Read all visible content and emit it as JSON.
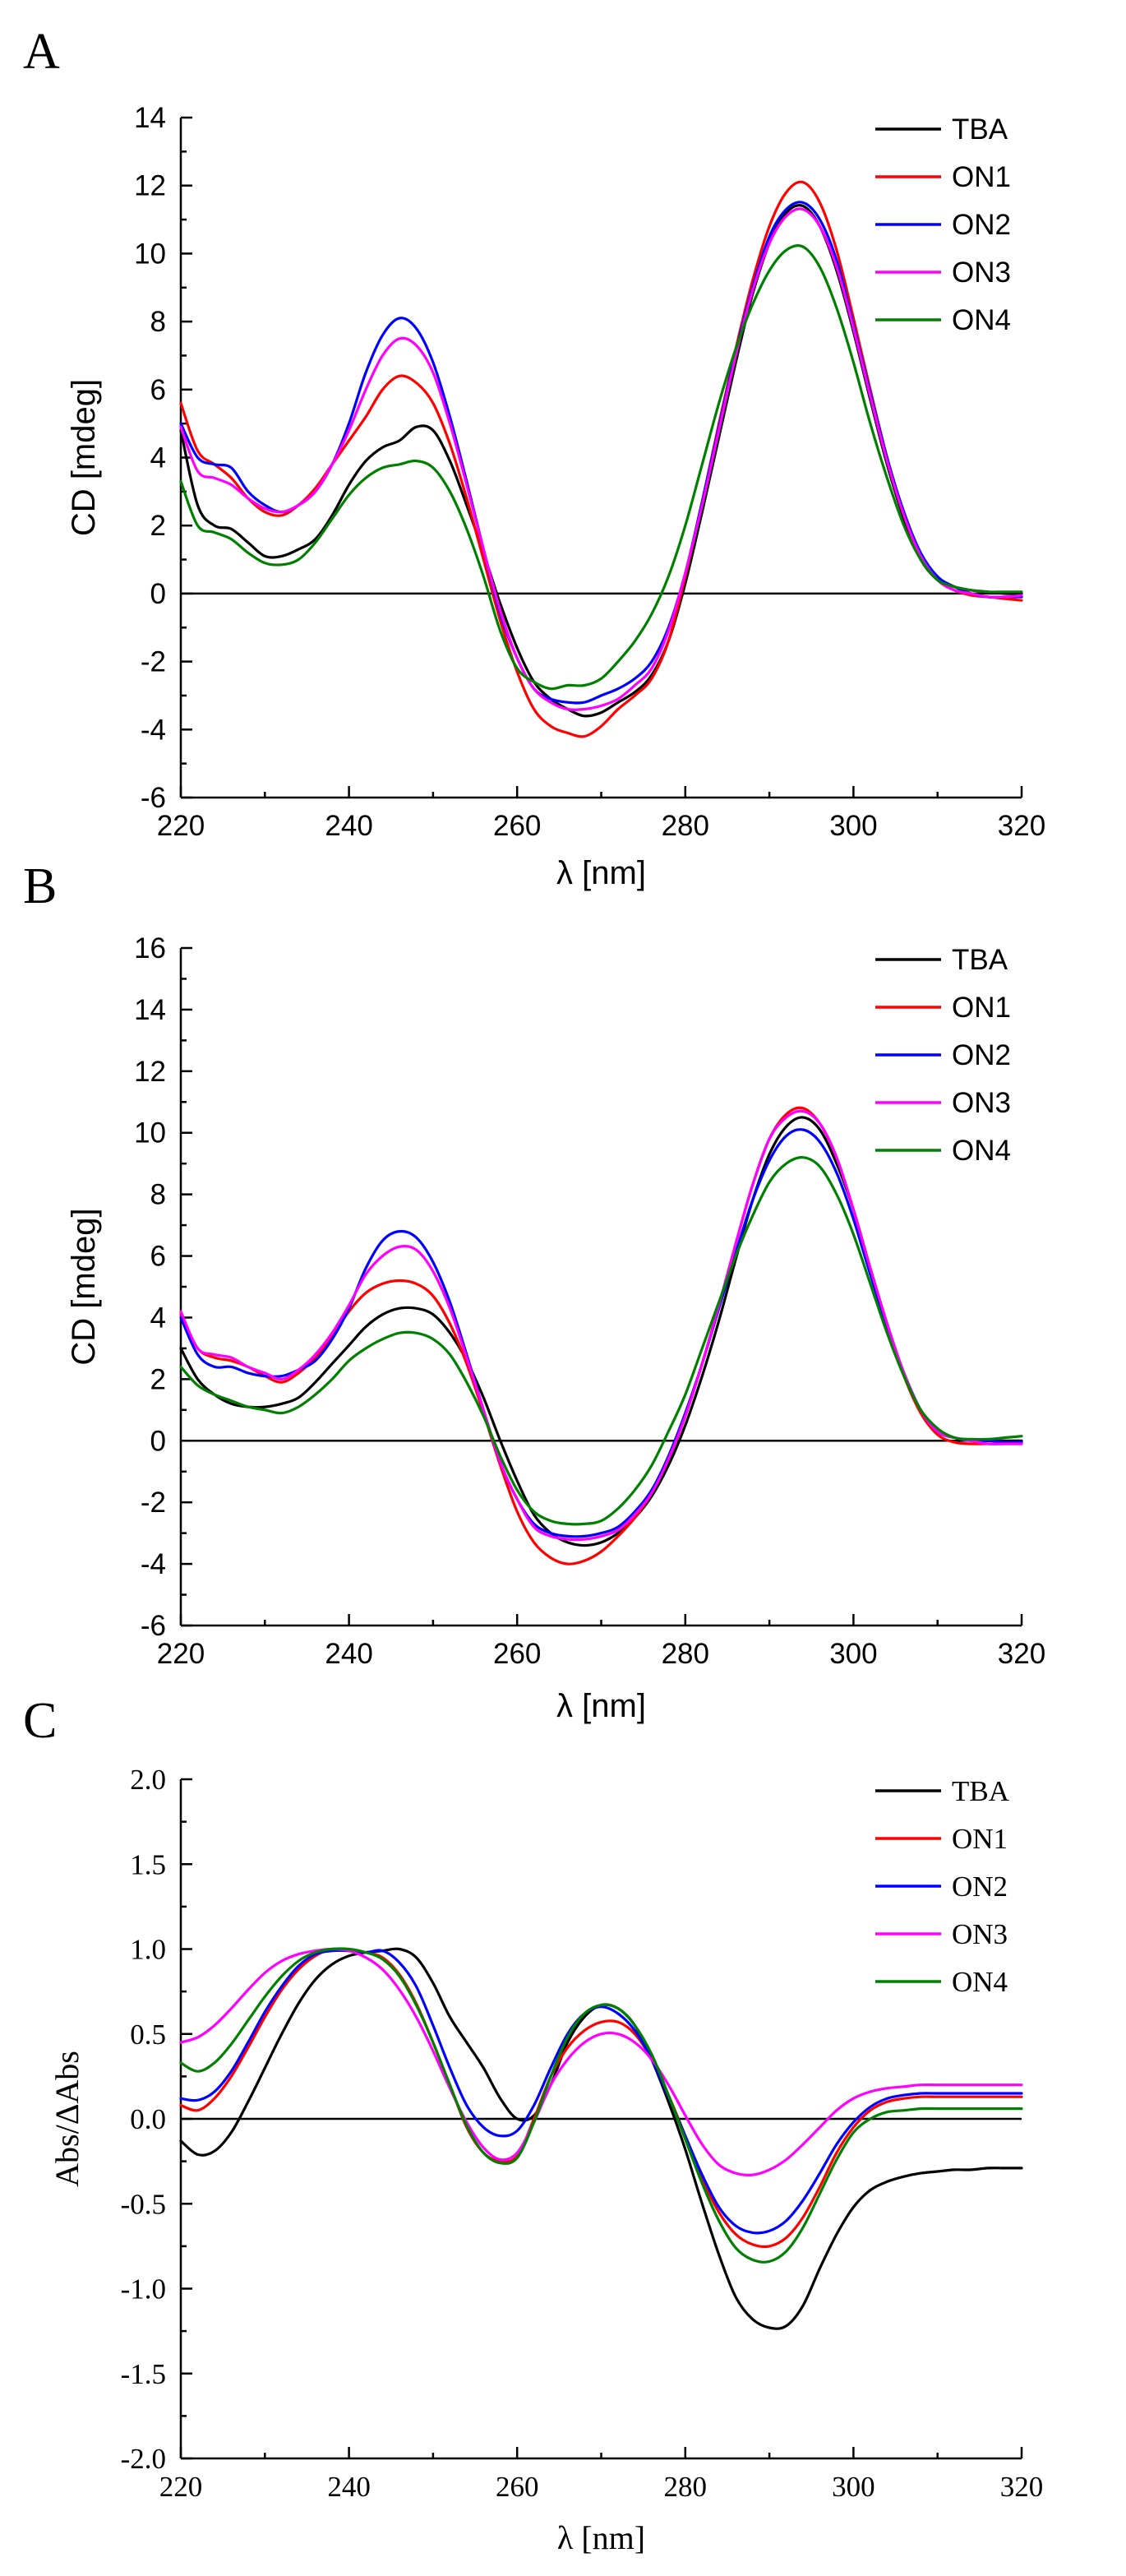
{
  "chart_data": [
    {
      "panel": "A",
      "type": "line",
      "title": "",
      "xlabel": "λ [nm]",
      "ylabel": "CD [mdeg]",
      "xlim": [
        220,
        320
      ],
      "ylim": [
        -6,
        14
      ],
      "xticks": [
        "220",
        "240",
        "260",
        "280",
        "300",
        "320"
      ],
      "yticks": [
        "-6",
        "-4",
        "-2",
        "0",
        "2",
        "4",
        "6",
        "8",
        "10",
        "12",
        "14"
      ],
      "zero_line": true,
      "legend_position": "top-right",
      "x": [
        220,
        222,
        224,
        226,
        228,
        230,
        232,
        234,
        236,
        238,
        240,
        242,
        244,
        246,
        248,
        250,
        252,
        254,
        256,
        258,
        260,
        262,
        264,
        266,
        268,
        270,
        272,
        274,
        276,
        278,
        280,
        282,
        284,
        286,
        288,
        290,
        292,
        294,
        296,
        298,
        300,
        302,
        304,
        306,
        308,
        310,
        312,
        314,
        316,
        318,
        320
      ],
      "series": [
        {
          "name": "TBA",
          "color": "#000000",
          "values": [
            4.8,
            2.6,
            2.0,
            1.9,
            1.5,
            1.1,
            1.1,
            1.3,
            1.6,
            2.3,
            3.2,
            3.9,
            4.3,
            4.5,
            4.9,
            4.8,
            3.9,
            2.6,
            1.2,
            -0.3,
            -1.6,
            -2.6,
            -3.1,
            -3.4,
            -3.6,
            -3.5,
            -3.2,
            -2.9,
            -2.4,
            -1.4,
            0.3,
            2.4,
            4.6,
            6.8,
            8.8,
            10.3,
            11.2,
            11.4,
            10.8,
            9.5,
            7.7,
            5.7,
            3.8,
            2.2,
            1.0,
            0.4,
            0.2,
            0.1,
            0.05,
            0.0,
            0.0
          ]
        },
        {
          "name": "ON1",
          "color": "#ff0000",
          "values": [
            5.6,
            4.2,
            3.8,
            3.4,
            2.8,
            2.4,
            2.3,
            2.6,
            3.1,
            3.8,
            4.5,
            5.2,
            6.0,
            6.4,
            6.2,
            5.6,
            4.4,
            2.8,
            1.0,
            -0.8,
            -2.3,
            -3.4,
            -3.9,
            -4.1,
            -4.2,
            -3.9,
            -3.4,
            -3.0,
            -2.5,
            -1.4,
            0.5,
            2.7,
            5.0,
            7.2,
            9.2,
            10.8,
            11.8,
            12.1,
            11.5,
            10.1,
            8.1,
            6.0,
            4.0,
            2.3,
            1.1,
            0.4,
            0.1,
            -0.05,
            -0.1,
            -0.15,
            -0.2
          ]
        },
        {
          "name": "ON2",
          "color": "#0000ff",
          "values": [
            5.0,
            4.0,
            3.8,
            3.7,
            3.0,
            2.6,
            2.4,
            2.6,
            3.0,
            3.8,
            5.0,
            6.5,
            7.6,
            8.1,
            7.8,
            6.8,
            5.2,
            3.3,
            1.3,
            -0.6,
            -1.9,
            -2.8,
            -3.1,
            -3.2,
            -3.2,
            -3.0,
            -2.8,
            -2.5,
            -2.0,
            -1.0,
            0.6,
            2.7,
            4.9,
            7.1,
            9.0,
            10.5,
            11.3,
            11.5,
            11.0,
            9.8,
            7.9,
            5.9,
            4.0,
            2.4,
            1.2,
            0.5,
            0.2,
            0.0,
            -0.1,
            -0.1,
            -0.1
          ]
        },
        {
          "name": "ON3",
          "color": "#ff00ff",
          "values": [
            4.9,
            3.6,
            3.4,
            3.2,
            2.8,
            2.5,
            2.4,
            2.6,
            3.0,
            3.8,
            4.8,
            6.0,
            7.0,
            7.5,
            7.3,
            6.5,
            5.0,
            3.2,
            1.3,
            -0.5,
            -1.9,
            -2.8,
            -3.2,
            -3.4,
            -3.4,
            -3.3,
            -3.1,
            -2.7,
            -2.2,
            -1.1,
            0.6,
            2.6,
            4.8,
            7.0,
            8.9,
            10.3,
            11.1,
            11.3,
            10.8,
            9.6,
            7.8,
            5.8,
            3.9,
            2.3,
            1.1,
            0.4,
            0.1,
            0.0,
            -0.1,
            -0.1,
            -0.05
          ]
        },
        {
          "name": "ON4",
          "color": "#008000",
          "values": [
            3.3,
            2.0,
            1.8,
            1.6,
            1.2,
            0.9,
            0.85,
            1.0,
            1.5,
            2.2,
            2.9,
            3.4,
            3.7,
            3.8,
            3.9,
            3.7,
            3.0,
            1.9,
            0.5,
            -1.1,
            -2.2,
            -2.6,
            -2.8,
            -2.7,
            -2.7,
            -2.5,
            -2.0,
            -1.4,
            -0.6,
            0.5,
            2.0,
            3.8,
            5.6,
            7.2,
            8.5,
            9.5,
            10.1,
            10.2,
            9.6,
            8.4,
            6.8,
            5.0,
            3.4,
            2.0,
            1.0,
            0.4,
            0.2,
            0.1,
            0.05,
            0.05,
            0.05
          ]
        }
      ]
    },
    {
      "panel": "B",
      "type": "line",
      "title": "",
      "xlabel": "λ [nm]",
      "ylabel": "CD [mdeg]",
      "xlim": [
        220,
        320
      ],
      "ylim": [
        -6,
        16
      ],
      "xticks": [
        "220",
        "240",
        "260",
        "280",
        "300",
        "320"
      ],
      "yticks": [
        "-6",
        "-4",
        "-2",
        "0",
        "2",
        "4",
        "6",
        "8",
        "10",
        "12",
        "14",
        "16"
      ],
      "zero_line": true,
      "legend_position": "top-right",
      "x": [
        220,
        222,
        224,
        226,
        228,
        230,
        232,
        234,
        236,
        238,
        240,
        242,
        244,
        246,
        248,
        250,
        252,
        254,
        256,
        258,
        260,
        262,
        264,
        266,
        268,
        270,
        272,
        274,
        276,
        278,
        280,
        282,
        284,
        286,
        288,
        290,
        292,
        294,
        296,
        298,
        300,
        302,
        304,
        306,
        308,
        310,
        312,
        314,
        316,
        318,
        320
      ],
      "series": [
        {
          "name": "TBA",
          "color": "#000000",
          "values": [
            3.0,
            2.0,
            1.5,
            1.2,
            1.1,
            1.1,
            1.2,
            1.4,
            1.9,
            2.5,
            3.1,
            3.7,
            4.1,
            4.3,
            4.3,
            4.1,
            3.5,
            2.6,
            1.4,
            0.0,
            -1.3,
            -2.4,
            -3.0,
            -3.3,
            -3.4,
            -3.3,
            -3.0,
            -2.5,
            -1.8,
            -0.8,
            0.5,
            2.1,
            3.9,
            5.9,
            7.8,
            9.3,
            10.2,
            10.5,
            10.1,
            9.0,
            7.5,
            5.6,
            3.8,
            2.2,
            1.0,
            0.3,
            0.1,
            0.0,
            0.0,
            0.0,
            0.0
          ]
        },
        {
          "name": "ON1",
          "color": "#ff0000",
          "values": [
            4.1,
            3.0,
            2.7,
            2.6,
            2.4,
            2.1,
            1.9,
            2.2,
            2.7,
            3.4,
            4.2,
            4.8,
            5.1,
            5.2,
            5.1,
            4.7,
            3.8,
            2.5,
            0.9,
            -0.8,
            -2.3,
            -3.3,
            -3.8,
            -4.0,
            -3.9,
            -3.6,
            -3.1,
            -2.5,
            -1.7,
            -0.6,
            0.8,
            2.5,
            4.4,
            6.4,
            8.3,
            9.8,
            10.6,
            10.8,
            10.3,
            9.2,
            7.5,
            5.6,
            3.7,
            2.1,
            0.9,
            0.2,
            -0.05,
            -0.1,
            -0.1,
            -0.1,
            -0.1
          ]
        },
        {
          "name": "ON2",
          "color": "#0000ff",
          "values": [
            4.0,
            2.8,
            2.4,
            2.4,
            2.2,
            2.1,
            2.1,
            2.3,
            2.6,
            3.3,
            4.3,
            5.6,
            6.5,
            6.8,
            6.6,
            5.8,
            4.5,
            2.8,
            1.0,
            -0.7,
            -1.9,
            -2.7,
            -3.0,
            -3.1,
            -3.1,
            -3.0,
            -2.8,
            -2.3,
            -1.6,
            -0.5,
            0.9,
            2.5,
            4.3,
            6.1,
            7.8,
            9.1,
            9.9,
            10.1,
            9.7,
            8.7,
            7.2,
            5.4,
            3.7,
            2.2,
            1.0,
            0.3,
            0.1,
            0.0,
            0.0,
            -0.05,
            -0.05
          ]
        },
        {
          "name": "ON3",
          "color": "#ff00ff",
          "values": [
            4.2,
            3.0,
            2.8,
            2.7,
            2.4,
            2.2,
            2.0,
            2.3,
            2.8,
            3.5,
            4.4,
            5.4,
            6.0,
            6.3,
            6.2,
            5.5,
            4.3,
            2.7,
            1.0,
            -0.7,
            -1.9,
            -2.8,
            -3.1,
            -3.2,
            -3.2,
            -3.1,
            -2.9,
            -2.4,
            -1.7,
            -0.6,
            0.8,
            2.5,
            4.4,
            6.4,
            8.3,
            9.8,
            10.5,
            10.7,
            10.3,
            9.2,
            7.5,
            5.6,
            3.8,
            2.2,
            1.0,
            0.3,
            0.1,
            0.0,
            -0.1,
            -0.1,
            -0.1
          ]
        },
        {
          "name": "ON4",
          "color": "#008000",
          "values": [
            2.4,
            1.8,
            1.5,
            1.3,
            1.1,
            1.0,
            0.9,
            1.1,
            1.5,
            2.0,
            2.6,
            3.0,
            3.3,
            3.5,
            3.5,
            3.3,
            2.8,
            1.9,
            0.8,
            -0.5,
            -1.6,
            -2.3,
            -2.6,
            -2.7,
            -2.7,
            -2.6,
            -2.2,
            -1.6,
            -0.8,
            0.3,
            1.5,
            3.0,
            4.5,
            6.0,
            7.3,
            8.4,
            9.0,
            9.2,
            8.9,
            8.0,
            6.7,
            5.1,
            3.5,
            2.1,
            1.0,
            0.4,
            0.1,
            0.05,
            0.05,
            0.1,
            0.15
          ]
        }
      ]
    },
    {
      "panel": "C",
      "type": "line",
      "title": "",
      "xlabel": "λ [nm]",
      "ylabel": "Abs/ΔAbs",
      "xlim": [
        220,
        320
      ],
      "ylim": [
        -2.0,
        2.0
      ],
      "xticks": [
        "220",
        "240",
        "260",
        "280",
        "300",
        "320"
      ],
      "yticks": [
        "-2.0",
        "-1.5",
        "-1.0",
        "-0.5",
        "0.0",
        "0.5",
        "1.0",
        "1.5",
        "2.0"
      ],
      "zero_line": true,
      "legend_position": "top-right",
      "x": [
        220,
        222,
        224,
        226,
        228,
        230,
        232,
        234,
        236,
        238,
        240,
        242,
        244,
        246,
        248,
        250,
        252,
        254,
        256,
        258,
        260,
        262,
        264,
        266,
        268,
        270,
        272,
        274,
        276,
        278,
        280,
        282,
        284,
        286,
        288,
        290,
        292,
        294,
        296,
        298,
        300,
        302,
        304,
        306,
        308,
        310,
        312,
        314,
        316,
        318,
        320
      ],
      "series": [
        {
          "name": "TBA",
          "color": "#000000",
          "values": [
            -0.13,
            -0.21,
            -0.19,
            -0.08,
            0.1,
            0.3,
            0.5,
            0.68,
            0.82,
            0.91,
            0.96,
            0.98,
            0.99,
            1.0,
            0.95,
            0.8,
            0.6,
            0.45,
            0.3,
            0.12,
            0.0,
            0.02,
            0.2,
            0.45,
            0.6,
            0.67,
            0.65,
            0.55,
            0.35,
            0.1,
            -0.18,
            -0.5,
            -0.8,
            -1.05,
            -1.18,
            -1.23,
            -1.22,
            -1.1,
            -0.88,
            -0.68,
            -0.52,
            -0.42,
            -0.37,
            -0.34,
            -0.32,
            -0.31,
            -0.3,
            -0.3,
            -0.29,
            -0.29,
            -0.29
          ]
        },
        {
          "name": "ON1",
          "color": "#ff0000",
          "values": [
            0.08,
            0.05,
            0.12,
            0.25,
            0.42,
            0.6,
            0.76,
            0.88,
            0.96,
            1.0,
            0.99,
            0.98,
            0.95,
            0.85,
            0.68,
            0.45,
            0.2,
            -0.05,
            -0.2,
            -0.25,
            -0.22,
            0.0,
            0.25,
            0.42,
            0.52,
            0.57,
            0.57,
            0.5,
            0.35,
            0.14,
            -0.1,
            -0.35,
            -0.55,
            -0.68,
            -0.74,
            -0.75,
            -0.7,
            -0.58,
            -0.4,
            -0.2,
            -0.05,
            0.05,
            0.1,
            0.12,
            0.13,
            0.13,
            0.13,
            0.13,
            0.13,
            0.13,
            0.13
          ]
        },
        {
          "name": "ON2",
          "color": "#0000ff",
          "values": [
            0.12,
            0.11,
            0.16,
            0.28,
            0.45,
            0.63,
            0.78,
            0.9,
            0.97,
            0.99,
            0.99,
            0.98,
            0.99,
            0.92,
            0.78,
            0.55,
            0.3,
            0.08,
            -0.05,
            -0.1,
            -0.07,
            0.08,
            0.3,
            0.5,
            0.62,
            0.66,
            0.62,
            0.52,
            0.35,
            0.13,
            -0.1,
            -0.33,
            -0.52,
            -0.63,
            -0.67,
            -0.66,
            -0.6,
            -0.48,
            -0.32,
            -0.15,
            -0.02,
            0.07,
            0.12,
            0.14,
            0.15,
            0.15,
            0.15,
            0.15,
            0.15,
            0.15,
            0.15
          ]
        },
        {
          "name": "ON3",
          "color": "#ff00ff",
          "values": [
            0.45,
            0.48,
            0.55,
            0.65,
            0.76,
            0.86,
            0.93,
            0.97,
            0.99,
            1.0,
            0.99,
            0.95,
            0.88,
            0.76,
            0.6,
            0.4,
            0.18,
            -0.02,
            -0.17,
            -0.24,
            -0.2,
            -0.02,
            0.2,
            0.35,
            0.45,
            0.5,
            0.5,
            0.45,
            0.35,
            0.2,
            0.02,
            -0.15,
            -0.27,
            -0.32,
            -0.33,
            -0.3,
            -0.24,
            -0.15,
            -0.05,
            0.05,
            0.12,
            0.16,
            0.18,
            0.19,
            0.2,
            0.2,
            0.2,
            0.2,
            0.2,
            0.2,
            0.2
          ]
        },
        {
          "name": "ON4",
          "color": "#008000",
          "values": [
            0.33,
            0.28,
            0.33,
            0.44,
            0.58,
            0.72,
            0.84,
            0.93,
            0.98,
            1.0,
            1.0,
            0.98,
            0.94,
            0.84,
            0.67,
            0.45,
            0.2,
            -0.04,
            -0.2,
            -0.26,
            -0.23,
            -0.02,
            0.25,
            0.48,
            0.62,
            0.67,
            0.65,
            0.55,
            0.38,
            0.14,
            -0.12,
            -0.38,
            -0.6,
            -0.76,
            -0.83,
            -0.84,
            -0.78,
            -0.64,
            -0.44,
            -0.24,
            -0.08,
            0.0,
            0.04,
            0.05,
            0.06,
            0.06,
            0.06,
            0.06,
            0.06,
            0.06,
            0.06
          ]
        }
      ]
    }
  ]
}
